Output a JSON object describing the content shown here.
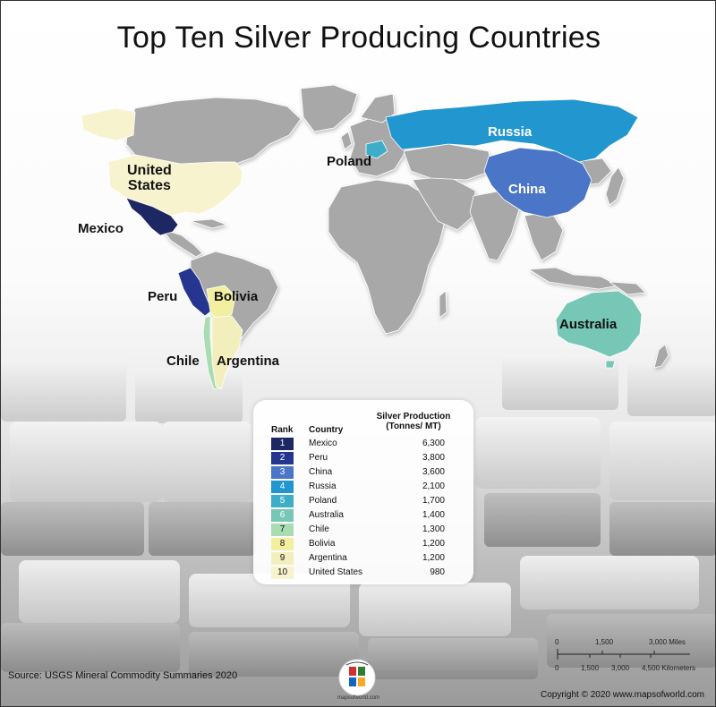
{
  "title": "Top Ten Silver Producing Countries",
  "map_labels": {
    "russia": "Russia",
    "china": "China",
    "poland": "Poland",
    "united_states_1": "United",
    "united_states_2": "States",
    "mexico": "Mexico",
    "peru": "Peru",
    "bolivia": "Bolivia",
    "chile": "Chile",
    "argentina": "Argentina",
    "australia": "Australia"
  },
  "legend": {
    "rank_header": "Rank",
    "country_header": "Country",
    "value_header_1": "Silver Production",
    "value_header_2": "(Tonnes/ MT)",
    "rows": [
      {
        "rank": "1",
        "country": "Mexico",
        "value": "6,300",
        "color": "#1d2762",
        "text_color": "#ffffff"
      },
      {
        "rank": "2",
        "country": "Peru",
        "value": "3,800",
        "color": "#26358f",
        "text_color": "#ffffff"
      },
      {
        "rank": "3",
        "country": "China",
        "value": "3,600",
        "color": "#4b75c6",
        "text_color": "#ffffff"
      },
      {
        "rank": "4",
        "country": "Russia",
        "value": "2,100",
        "color": "#2196cf",
        "text_color": "#ffffff"
      },
      {
        "rank": "5",
        "country": "Poland",
        "value": "1,700",
        "color": "#3dadc8",
        "text_color": "#ffffff"
      },
      {
        "rank": "6",
        "country": "Australia",
        "value": "1,400",
        "color": "#76c7b6",
        "text_color": "#ffffff"
      },
      {
        "rank": "7",
        "country": "Chile",
        "value": "1,300",
        "color": "#a9dcb2",
        "text_color": "#111111"
      },
      {
        "rank": "8",
        "country": "Bolivia",
        "value": "1,200",
        "color": "#f2f0a0",
        "text_color": "#111111"
      },
      {
        "rank": "9",
        "country": "Argentina",
        "value": "1,200",
        "color": "#f3efbc",
        "text_color": "#111111"
      },
      {
        "rank": "10",
        "country": "United States",
        "value": "980",
        "color": "#f7f3cf",
        "text_color": "#111111"
      }
    ]
  },
  "scale": {
    "miles_ticks": [
      "0",
      "1,500",
      "3,000 Miles"
    ],
    "km_ticks": [
      "0",
      "1,500",
      "3,000",
      "4,500 Kilometers"
    ]
  },
  "source": "Source:  USGS Mineral Commodity Summaries 2020",
  "logo_text": "mapsofworld.com",
  "copyright": "Copyright © 2020 www.mapsofworld.com",
  "colors": {
    "land": "#a8a8a8",
    "country_border": "#ffffff"
  }
}
